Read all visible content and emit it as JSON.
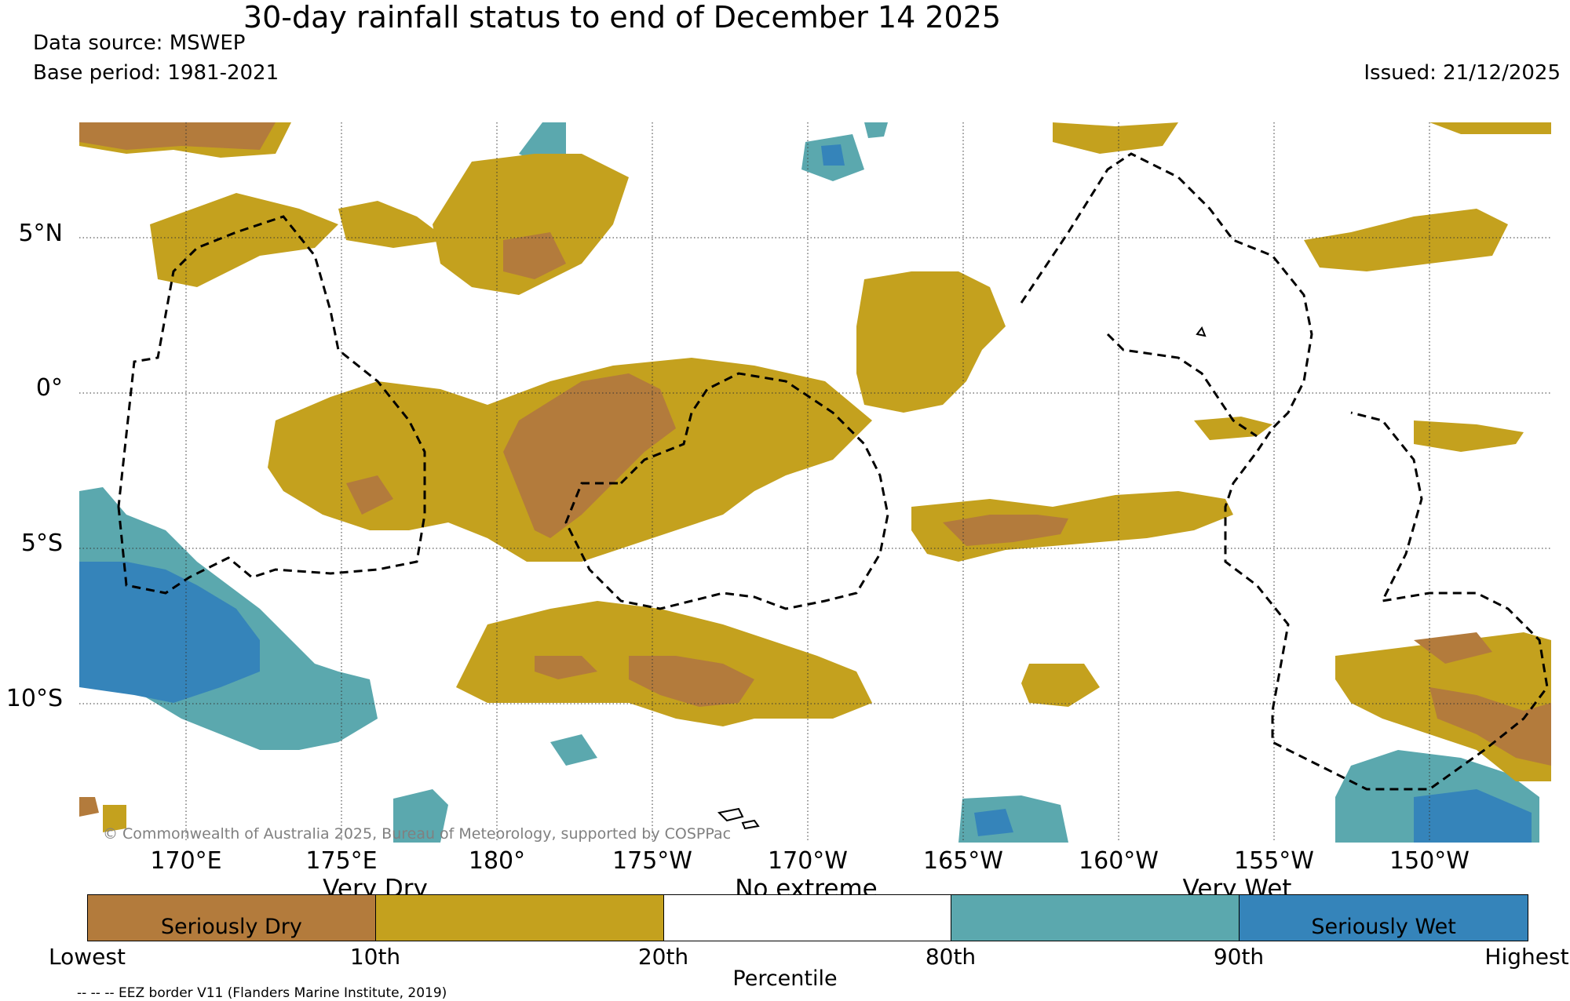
{
  "title": "30-day rainfall status to end of December 14 2025",
  "data_source": "Data source: MSWEP",
  "base_period": "Base period: 1981-2021",
  "issued": "Issued: 21/12/2025",
  "copyright": "© Commonwealth of Australia 2025, Bureau of Meteorology, supported by COSPPac",
  "eez_note": "-- -- -- EEZ border V11 (Flanders Marine Institute, 2019)",
  "lat_labels": [
    "5°N",
    "0°",
    "5°S",
    "10°S"
  ],
  "lon_labels": [
    "170°E",
    "175°E",
    "180°",
    "175°W",
    "170°W",
    "165°W",
    "160°W",
    "155°W",
    "150°W"
  ],
  "legend": {
    "categories": [
      {
        "label": "Very Dry"
      },
      {
        "label": "No extreme"
      },
      {
        "label": "Very Wet"
      }
    ],
    "segments": [
      {
        "inner": "Seriously Dry",
        "color": "#b37b3c"
      },
      {
        "inner": "",
        "color": "#c4a11e"
      },
      {
        "inner": "",
        "color": "#ffffff"
      },
      {
        "inner": "",
        "color": "#5ba8ae"
      },
      {
        "inner": "Seriously Wet",
        "color": "#3584ba"
      }
    ],
    "ticks": [
      "Lowest",
      "10th",
      "20th",
      "80th",
      "90th",
      "Highest"
    ],
    "axis_label": "Percentile"
  }
}
